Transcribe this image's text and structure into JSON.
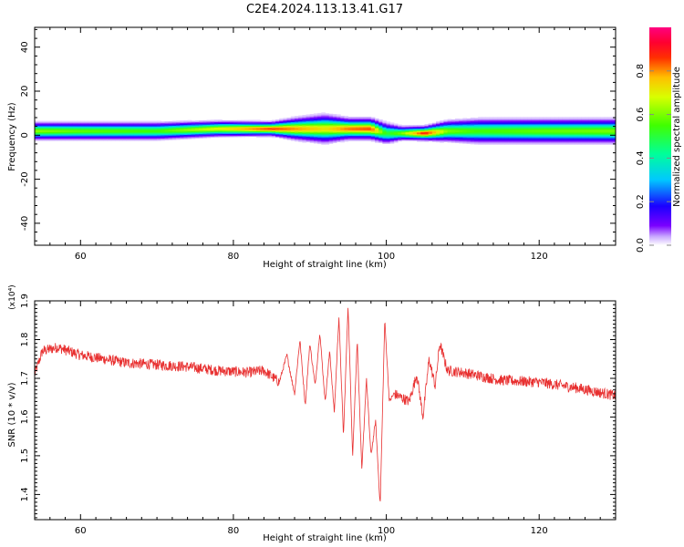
{
  "title": "C2E4.2024.113.13.41.G17",
  "chart_data": [
    {
      "type": "heatmap",
      "xlabel": "Height of straight line (km)",
      "ylabel": "Frequency (Hz)",
      "xlim": [
        54,
        130
      ],
      "ylim": [
        -50,
        49
      ],
      "x_ticks": [
        60,
        80,
        100,
        120
      ],
      "y_ticks": [
        -40,
        -20,
        0,
        20,
        40
      ],
      "colorbar": {
        "label": "Normalized spectral amplitude",
        "range": [
          0,
          1
        ],
        "ticks": [
          0.0,
          0.2,
          0.4,
          0.6,
          0.8
        ],
        "tick_labels": [
          "0.0",
          "0.2",
          "0.4",
          "0.6",
          "0.8"
        ],
        "colormap": "rainbow"
      },
      "ridge": {
        "heights_km": [
          54,
          60,
          70,
          78,
          85,
          88,
          92,
          95,
          98,
          100,
          102,
          105,
          108,
          112,
          120,
          130
        ],
        "center_freq_hz": [
          2,
          2,
          2,
          3,
          3,
          3,
          3,
          3,
          3,
          1,
          1,
          1,
          2,
          2,
          2,
          2
        ],
        "peak_amplitude": [
          0.62,
          0.58,
          0.55,
          0.7,
          0.86,
          0.8,
          0.72,
          0.82,
          0.85,
          0.5,
          0.6,
          0.9,
          0.6,
          0.55,
          0.58,
          0.6
        ],
        "half_width_hz": [
          2.5,
          2.5,
          2.5,
          2.2,
          2,
          3,
          4,
          3,
          3,
          3,
          2,
          2,
          3,
          3.5,
          3.5,
          3.5
        ]
      }
    },
    {
      "type": "line",
      "xlabel": "Height of straight line (km)",
      "ylabel": "SNR (10 * v/v)",
      "y_multiplier": "(x10⁴)",
      "xlim": [
        54,
        130
      ],
      "ylim": [
        1.335,
        1.9
      ],
      "x_ticks": [
        60,
        80,
        100,
        120
      ],
      "y_ticks": [
        1.4,
        1.5,
        1.6,
        1.7,
        1.8,
        1.9
      ],
      "series": [
        {
          "color": "#e83030",
          "x": [
            54,
            55,
            57,
            60,
            63,
            66,
            70,
            74,
            78,
            82,
            84,
            86,
            87,
            88,
            88.7,
            89.4,
            90,
            90.7,
            91.3,
            92,
            92.6,
            93.2,
            93.8,
            94.4,
            95,
            95.6,
            96.2,
            96.8,
            97.4,
            98,
            98.6,
            99.2,
            99.8,
            100.4,
            101,
            102,
            103,
            104,
            104.8,
            105.6,
            106.4,
            107,
            108,
            110,
            115,
            120,
            125,
            130
          ],
          "y": [
            1.71,
            1.77,
            1.78,
            1.76,
            1.75,
            1.74,
            1.735,
            1.73,
            1.72,
            1.715,
            1.72,
            1.69,
            1.76,
            1.66,
            1.8,
            1.63,
            1.79,
            1.68,
            1.82,
            1.64,
            1.77,
            1.61,
            1.86,
            1.55,
            1.89,
            1.5,
            1.8,
            1.46,
            1.7,
            1.5,
            1.59,
            1.37,
            1.85,
            1.64,
            1.66,
            1.65,
            1.64,
            1.71,
            1.6,
            1.75,
            1.68,
            1.79,
            1.72,
            1.715,
            1.695,
            1.69,
            1.675,
            1.655
          ]
        }
      ]
    }
  ]
}
